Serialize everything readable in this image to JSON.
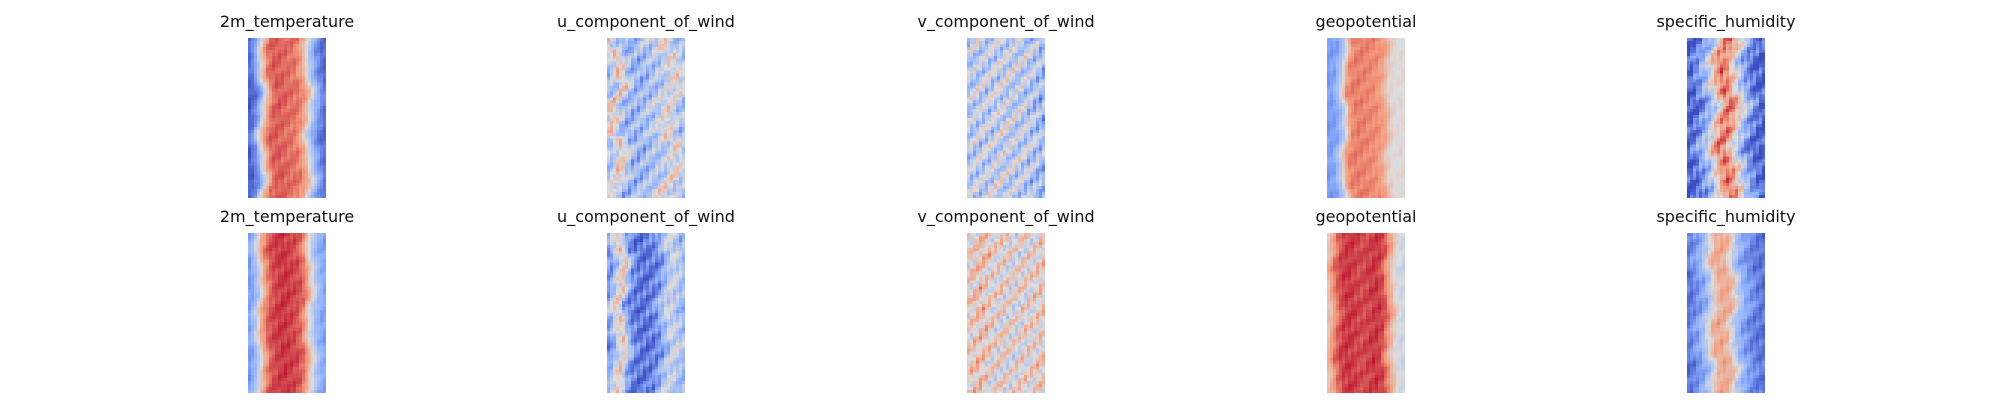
{
  "chart_data": [
    {
      "type": "heatmap",
      "title": "2m_temperature",
      "colormap": "coolwarm",
      "profile": [
        0.05,
        0.18,
        0.55,
        0.82,
        0.86,
        0.84,
        0.82,
        0.81,
        0.7,
        0.4,
        0.2,
        0.08
      ],
      "wobble": 0.08,
      "noise": 0.05
    },
    {
      "type": "heatmap",
      "title": "u_component_of_wind",
      "colormap": "coolwarm",
      "profile": [
        0.35,
        0.62,
        0.45,
        0.3,
        0.28,
        0.32,
        0.35,
        0.38,
        0.42,
        0.55,
        0.48,
        0.35
      ],
      "wobble": 0.18,
      "noise": 0.18
    },
    {
      "type": "heatmap",
      "title": "v_component_of_wind",
      "colormap": "coolwarm",
      "profile": [
        0.38,
        0.4,
        0.42,
        0.4,
        0.42,
        0.44,
        0.42,
        0.4,
        0.42,
        0.38,
        0.35,
        0.3
      ],
      "wobble": 0.14,
      "noise": 0.22
    },
    {
      "type": "heatmap",
      "title": "geopotential",
      "colormap": "coolwarm",
      "profile": [
        0.2,
        0.22,
        0.4,
        0.76,
        0.8,
        0.79,
        0.78,
        0.77,
        0.72,
        0.55,
        0.5,
        0.52
      ],
      "wobble": 0.07,
      "noise": 0.04
    },
    {
      "type": "heatmap",
      "title": "specific_humidity",
      "colormap": "coolwarm",
      "profile": [
        0.05,
        0.1,
        0.22,
        0.35,
        0.58,
        0.8,
        0.78,
        0.55,
        0.35,
        0.18,
        0.08,
        0.05
      ],
      "wobble": 0.12,
      "noise": 0.16
    },
    {
      "type": "heatmap",
      "title": "2m_temperature",
      "colormap": "coolwarm",
      "profile": [
        0.2,
        0.36,
        0.7,
        0.86,
        0.9,
        0.92,
        0.9,
        0.88,
        0.8,
        0.5,
        0.3,
        0.22
      ],
      "wobble": 0.06,
      "noise": 0.05
    },
    {
      "type": "heatmap",
      "title": "u_component_of_wind",
      "colormap": "coolwarm",
      "profile": [
        0.18,
        0.45,
        0.6,
        0.22,
        0.12,
        0.1,
        0.12,
        0.16,
        0.3,
        0.45,
        0.4,
        0.3
      ],
      "wobble": 0.1,
      "noise": 0.14
    },
    {
      "type": "heatmap",
      "title": "v_component_of_wind",
      "colormap": "coolwarm",
      "profile": [
        0.55,
        0.58,
        0.62,
        0.55,
        0.52,
        0.55,
        0.52,
        0.5,
        0.55,
        0.52,
        0.55,
        0.58
      ],
      "wobble": 0.1,
      "noise": 0.2
    },
    {
      "type": "heatmap",
      "title": "geopotential",
      "colormap": "coolwarm",
      "profile": [
        0.6,
        0.8,
        0.9,
        0.92,
        0.9,
        0.88,
        0.9,
        0.92,
        0.88,
        0.7,
        0.5,
        0.45
      ],
      "wobble": 0.06,
      "noise": 0.05
    },
    {
      "type": "heatmap",
      "title": "specific_humidity",
      "colormap": "coolwarm",
      "profile": [
        0.1,
        0.18,
        0.25,
        0.42,
        0.66,
        0.7,
        0.64,
        0.4,
        0.25,
        0.18,
        0.12,
        0.1
      ],
      "wobble": 0.1,
      "noise": 0.08
    }
  ]
}
